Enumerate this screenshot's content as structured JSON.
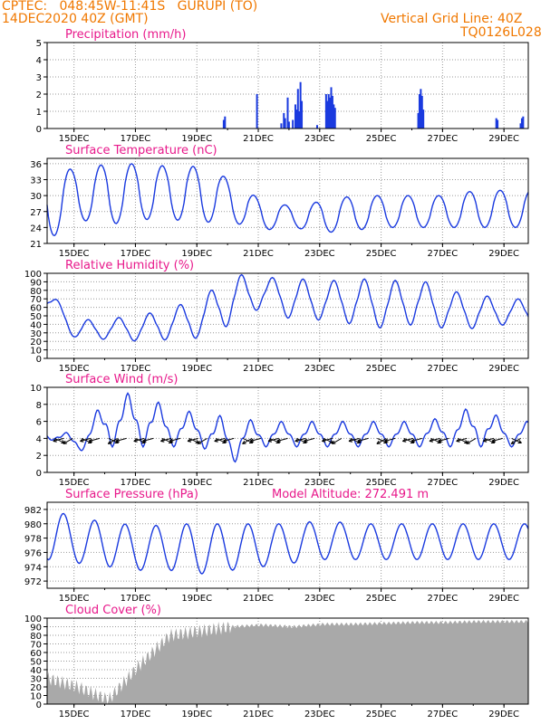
{
  "header": {
    "source": "CPTEC:",
    "coords": "048:45W-11:41S",
    "location": "GURUPI (TO)",
    "run": "14DEC2020 40Z (GMT)",
    "grid_note": "Vertical Grid Line: 40Z",
    "code": "TQ0126L028",
    "model_altitude": "Model Altitude: 272.491 m"
  },
  "colors": {
    "header": "#f07800",
    "title": "#e8198b",
    "line": "#1a3adf",
    "bar": "#1a3adf",
    "cloud": "#a9a9a9",
    "grid": "#9a9a9a"
  },
  "chart_data": [
    {
      "type": "bar",
      "title": "Precipitation (mm/h)",
      "x_tick_labels": [
        "15DEC",
        "17DEC",
        "19DEC",
        "21DEC",
        "23DEC",
        "25DEC",
        "27DEC",
        "29DEC"
      ],
      "ylim": [
        0,
        5
      ],
      "yticks": [
        0,
        1,
        2,
        3,
        4,
        5
      ],
      "x_unit": "hours since 14DEC 00Z",
      "events": [
        {
          "x": 138,
          "value": 0.5
        },
        {
          "x": 139,
          "value": 0.7
        },
        {
          "x": 164,
          "value": 2.0
        },
        {
          "x": 183,
          "value": 0.3
        },
        {
          "x": 185,
          "value": 0.9
        },
        {
          "x": 186,
          "value": 0.6
        },
        {
          "x": 188,
          "value": 1.8
        },
        {
          "x": 189,
          "value": 0.4
        },
        {
          "x": 192,
          "value": 0.5
        },
        {
          "x": 194,
          "value": 1.4
        },
        {
          "x": 195,
          "value": 1.1
        },
        {
          "x": 196,
          "value": 2.3
        },
        {
          "x": 197,
          "value": 1.0
        },
        {
          "x": 198,
          "value": 2.7
        },
        {
          "x": 199,
          "value": 1.6
        },
        {
          "x": 211,
          "value": 0.2
        },
        {
          "x": 218,
          "value": 2.0
        },
        {
          "x": 219,
          "value": 1.6
        },
        {
          "x": 220,
          "value": 2.0
        },
        {
          "x": 221,
          "value": 1.8
        },
        {
          "x": 222,
          "value": 2.4
        },
        {
          "x": 223,
          "value": 1.9
        },
        {
          "x": 224,
          "value": 1.4
        },
        {
          "x": 225,
          "value": 1.2
        },
        {
          "x": 290,
          "value": 0.9
        },
        {
          "x": 291,
          "value": 2.0
        },
        {
          "x": 292,
          "value": 2.3
        },
        {
          "x": 293,
          "value": 1.9
        },
        {
          "x": 294,
          "value": 1.1
        },
        {
          "x": 351,
          "value": 0.6
        },
        {
          "x": 352,
          "value": 0.5
        },
        {
          "x": 370,
          "value": 0.3
        },
        {
          "x": 371,
          "value": 0.6
        },
        {
          "x": 372,
          "value": 0.7
        }
      ]
    },
    {
      "type": "line",
      "title": "Surface Temperature (nC)",
      "x_tick_labels": [
        "15DEC",
        "17DEC",
        "19DEC",
        "21DEC",
        "23DEC",
        "25DEC",
        "27DEC",
        "29DEC"
      ],
      "ylim": [
        21,
        37
      ],
      "yticks": [
        21,
        24,
        27,
        30,
        33,
        36
      ],
      "daily_max": [
        35,
        35,
        36,
        36,
        35.5,
        35.5,
        33,
        29,
        28,
        29,
        30,
        30,
        30,
        30,
        31,
        31
      ],
      "daily_min": [
        21.5,
        25.5,
        24.5,
        25.5,
        25.5,
        25,
        25,
        23.5,
        24,
        23,
        23.5,
        24,
        24,
        24,
        24,
        24
      ]
    },
    {
      "type": "line",
      "title": "Relative Humidity (%)",
      "x_tick_labels": [
        "15DEC",
        "17DEC",
        "19DEC",
        "21DEC",
        "23DEC",
        "25DEC",
        "27DEC",
        "29DEC"
      ],
      "ylim": [
        0,
        100
      ],
      "yticks": [
        0,
        10,
        20,
        30,
        40,
        50,
        60,
        70,
        80,
        90,
        100
      ],
      "daily_max": [
        80,
        45,
        47,
        50,
        60,
        70,
        100,
        95,
        95,
        90,
        95,
        90,
        95,
        80,
        75,
        70
      ],
      "daily_min": [
        58,
        20,
        23,
        20,
        22,
        24,
        40,
        60,
        45,
        45,
        40,
        35,
        40,
        35,
        35,
        40
      ]
    },
    {
      "type": "line",
      "title": "Surface Wind (m/s)",
      "x_tick_labels": [
        "15DEC",
        "17DEC",
        "19DEC",
        "21DEC",
        "23DEC",
        "25DEC",
        "27DEC",
        "29DEC"
      ],
      "ylim": [
        0,
        10
      ],
      "yticks": [
        0,
        2,
        4,
        6,
        8,
        10
      ],
      "daily_max": [
        5,
        4.5,
        9,
        9.5,
        7.5,
        7,
        6.5,
        6,
        6,
        6,
        6,
        6,
        6,
        6.5,
        8,
        6
      ],
      "daily_min": [
        4,
        2.5,
        3,
        3,
        3,
        3,
        1,
        3,
        3,
        3,
        3,
        3,
        3,
        3,
        3,
        3
      ],
      "vectors_note": "wind direction arrows (mostly from NE)"
    },
    {
      "type": "line",
      "title": "Surface Pressure (hPa)",
      "x_tick_labels": [
        "15DEC",
        "17DEC",
        "19DEC",
        "21DEC",
        "23DEC",
        "25DEC",
        "27DEC",
        "29DEC"
      ],
      "ylim": [
        971,
        983
      ],
      "yticks": [
        972,
        974,
        976,
        978,
        980,
        982
      ],
      "daily_max": [
        982.5,
        980.5,
        980.5,
        979.5,
        980,
        980,
        980,
        980,
        980,
        980.5,
        980,
        980,
        980,
        980,
        980,
        980
      ],
      "daily_min": [
        975,
        974.5,
        974,
        973.5,
        973.5,
        973,
        973.5,
        974,
        974.5,
        975,
        975,
        975,
        975,
        975,
        975,
        975
      ]
    },
    {
      "type": "area",
      "title": "Cloud Cover (%)",
      "x_tick_labels": [
        "15DEC",
        "17DEC",
        "19DEC",
        "21DEC",
        "23DEC",
        "25DEC",
        "27DEC",
        "29DEC"
      ],
      "ylim": [
        0,
        100
      ],
      "yticks": [
        0,
        10,
        20,
        30,
        40,
        50,
        60,
        70,
        80,
        90,
        100
      ],
      "daily_values": [
        30,
        20,
        5,
        45,
        80,
        85,
        90,
        92,
        90,
        93,
        93,
        94,
        95,
        95,
        96,
        96
      ]
    }
  ]
}
